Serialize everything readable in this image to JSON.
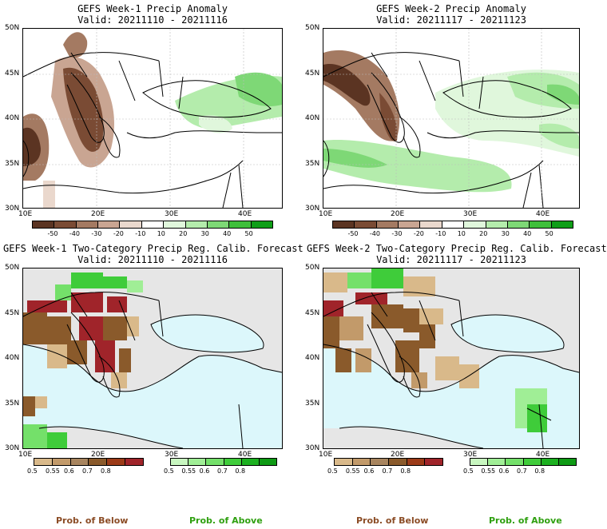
{
  "panels": {
    "tl": {
      "title": "GEFS Week-1 Precip Anomaly",
      "valid": "Valid: 20211110 - 20211116"
    },
    "tr": {
      "title": "GEFS Week-2 Precip Anomaly",
      "valid": "Valid: 20211117 - 20211123"
    },
    "bl": {
      "title": "GEFS Week-1 Two-Category Precip Reg. Calib. Forecast",
      "valid": "Valid: 20211110 - 20211116"
    },
    "br": {
      "title": "GEFS Week-2 Two-Category Precip Reg. Calib. Forecast",
      "valid": "Valid: 20211117 - 20211123"
    }
  },
  "axes": {
    "lat_labels": [
      "50N",
      "45N",
      "40N",
      "35N",
      "30N"
    ],
    "lon_labels": [
      "10E",
      "20E",
      "30E",
      "40E"
    ]
  },
  "anomaly_colorbar": {
    "labels": [
      "-50",
      "-40",
      "-30",
      "-20",
      "-10",
      "10",
      "20",
      "30",
      "40",
      "50"
    ],
    "colors": [
      "#5b3422",
      "#7a4b34",
      "#a47a62",
      "#c9a592",
      "#ead8cd",
      "#ffffff",
      "#e0f7dc",
      "#b4ecac",
      "#7ed876",
      "#3fbf3b",
      "#0f9e18"
    ]
  },
  "below_colorbar": {
    "labels": [
      "0.5",
      "0.55",
      "0.6",
      "0.7",
      "0.8"
    ],
    "colors": [
      "#d9b98a",
      "#c29a6a",
      "#a8855f",
      "#8a5a2b",
      "#9c3b18",
      "#a0242a"
    ]
  },
  "above_colorbar": {
    "labels": [
      "0.5",
      "0.55",
      "0.6",
      "0.7",
      "0.8"
    ],
    "colors": [
      "#c8f7c0",
      "#a0ee96",
      "#74e06a",
      "#3fcc3a",
      "#1cb020",
      "#0e9a14"
    ]
  },
  "legend": {
    "below": "Prob. of Below",
    "above": "Prob. of Above"
  },
  "colors": {
    "sea": "#dcf7fb",
    "land_nodata": "#e6e6e6",
    "below_text": "#8b4c25",
    "above_text": "#2fa010"
  }
}
